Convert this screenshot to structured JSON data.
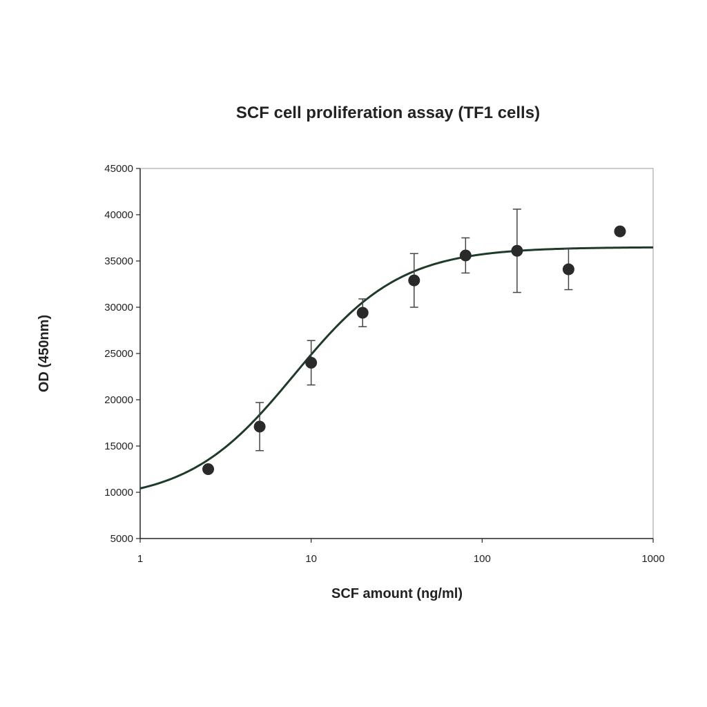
{
  "chart_data": {
    "type": "scatter",
    "title": "SCF cell proliferation assay (TF1 cells)",
    "xlabel": "SCF amount (ng/ml)",
    "ylabel": "OD (450nm)",
    "x_scale": "log",
    "xlim": [
      1,
      1000
    ],
    "ylim": [
      5000,
      45000
    ],
    "x_ticks": [
      1,
      10,
      100,
      1000
    ],
    "x_tick_labels": [
      "1",
      "10",
      "100",
      "1000"
    ],
    "y_ticks": [
      5000,
      10000,
      15000,
      20000,
      25000,
      30000,
      35000,
      40000,
      45000
    ],
    "y_tick_labels": [
      "5000",
      "10000",
      "15000",
      "20000",
      "25000",
      "30000",
      "35000",
      "40000",
      "45000"
    ],
    "grid": false,
    "legend": "none",
    "series": [
      {
        "marker": "circle",
        "x": [
          2.5,
          5,
          10,
          20,
          40,
          80,
          160,
          320,
          640
        ],
        "y": [
          12500,
          17100,
          24000,
          29400,
          32900,
          35600,
          36100,
          34100,
          38200
        ],
        "error": [
          null,
          2600,
          2400,
          1500,
          2900,
          1900,
          4500,
          2200,
          null
        ]
      }
    ],
    "fit_curve": {
      "type": "sigmoid",
      "bottom": 9000,
      "top": 36500,
      "ec50": 8,
      "hill": 1.4
    },
    "colors": {
      "marker": "#2a2a2a",
      "curve": "#1e3b2a",
      "axis": "#222222"
    }
  }
}
